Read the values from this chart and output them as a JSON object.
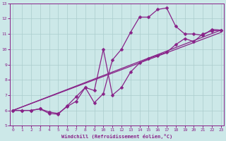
{
  "xlabel": "Windchill (Refroidissement éolien,°C)",
  "xlim": [
    0,
    23
  ],
  "ylim": [
    5,
    13
  ],
  "yticks": [
    5,
    6,
    7,
    8,
    9,
    10,
    11,
    12,
    13
  ],
  "xticks": [
    0,
    1,
    2,
    3,
    4,
    5,
    6,
    7,
    8,
    9,
    10,
    11,
    12,
    13,
    14,
    15,
    16,
    17,
    18,
    19,
    20,
    21,
    22,
    23
  ],
  "background_color": "#cce8e8",
  "grid_color": "#aacccc",
  "line_color": "#882288",
  "lines": [
    {
      "x": [
        0,
        1,
        2,
        3,
        4,
        5,
        6,
        7,
        8,
        9,
        10,
        11,
        12,
        13,
        14,
        15,
        16,
        17,
        18,
        19,
        20,
        21,
        22,
        23
      ],
      "y": [
        6.0,
        6.0,
        6.0,
        6.1,
        5.8,
        5.75,
        6.3,
        6.9,
        7.5,
        6.5,
        7.1,
        9.3,
        10.0,
        11.1,
        12.1,
        12.1,
        12.6,
        12.7,
        11.5,
        11.0,
        11.0,
        10.9,
        11.3,
        11.25
      ],
      "marker": true
    },
    {
      "x": [
        0,
        1,
        2,
        3,
        4,
        5,
        6,
        7,
        8,
        9,
        10,
        11,
        12,
        13,
        14,
        15,
        16,
        17,
        18,
        19,
        20,
        21,
        22,
        23
      ],
      "y": [
        6.0,
        6.0,
        6.0,
        6.1,
        5.9,
        5.8,
        6.25,
        6.6,
        7.5,
        7.3,
        10.0,
        7.0,
        7.5,
        8.5,
        9.1,
        9.4,
        9.6,
        9.8,
        10.3,
        10.7,
        10.5,
        11.0,
        11.2,
        11.25
      ],
      "marker": true
    },
    {
      "x": [
        0,
        23
      ],
      "y": [
        6.0,
        11.25
      ],
      "marker": false
    },
    {
      "x": [
        0,
        23
      ],
      "y": [
        6.0,
        11.1
      ],
      "marker": false
    }
  ],
  "markersize": 2.5,
  "linewidth": 0.9
}
